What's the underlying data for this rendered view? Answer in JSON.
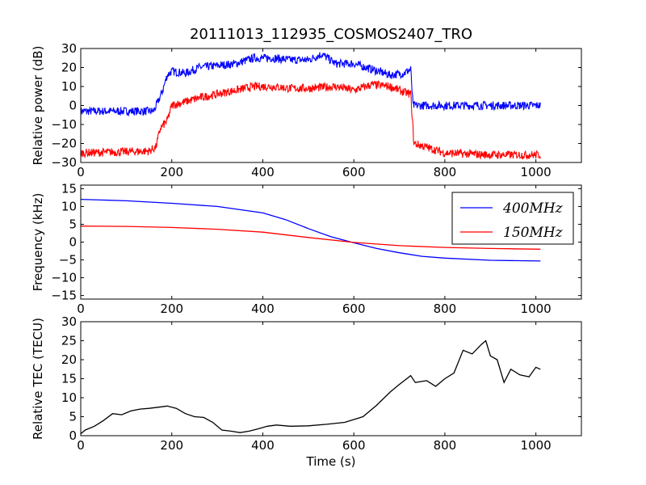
{
  "chart_data": [
    {
      "type": "line",
      "title": "20111013_112935_COSMOS2407_TRO",
      "xlabel": "",
      "ylabel": "Relative power (dB)",
      "xlim": [
        0,
        1100
      ],
      "ylim": [
        -30,
        30
      ],
      "xticks": [
        "0",
        "200",
        "400",
        "600",
        "800",
        "1000"
      ],
      "yticks": [
        "−30",
        "−20",
        "−10",
        "0",
        "10",
        "20",
        "30"
      ],
      "noise": 2.2,
      "series": [
        {
          "color": "#0000ff",
          "x": [
            0,
            160,
            170,
            180,
            190,
            200,
            230,
            260,
            300,
            340,
            380,
            420,
            460,
            500,
            530,
            560,
            600,
            640,
            680,
            710,
            725,
            730,
            760,
            800,
            900,
            1010
          ],
          "y": [
            -3,
            -3,
            2,
            8,
            16,
            18,
            17,
            20,
            21,
            22,
            25,
            25,
            24,
            24,
            27,
            22,
            22,
            19,
            16,
            17,
            19,
            0,
            0,
            0,
            0,
            0
          ]
        },
        {
          "color": "#ff0000",
          "x": [
            0,
            150,
            165,
            175,
            190,
            200,
            230,
            260,
            300,
            340,
            380,
            420,
            460,
            500,
            560,
            600,
            640,
            680,
            710,
            725,
            732,
            760,
            800,
            900,
            1010
          ],
          "y": [
            -25,
            -24,
            -22,
            -12,
            -8,
            0,
            2,
            4,
            6,
            8,
            10,
            10,
            9,
            9,
            10,
            8,
            11,
            10,
            7,
            6,
            -20,
            -22,
            -25,
            -26,
            -26
          ]
        }
      ]
    },
    {
      "type": "line",
      "title": "",
      "xlabel": "",
      "ylabel": "Frequency (kHz)",
      "xlim": [
        0,
        1100
      ],
      "ylim": [
        -16,
        16
      ],
      "xticks": [
        "0",
        "200",
        "400",
        "600",
        "800",
        "1000"
      ],
      "yticks": [
        "−15",
        "−10",
        "−5",
        "0",
        "5",
        "10",
        "15"
      ],
      "legend": "top-right",
      "noise": 0,
      "series": [
        {
          "name": "400MHz",
          "color": "#0000ff",
          "x": [
            0,
            100,
            200,
            300,
            400,
            450,
            500,
            550,
            600,
            650,
            700,
            750,
            800,
            900,
            1010
          ],
          "y": [
            12,
            11.6,
            10.9,
            10.0,
            8.2,
            6.3,
            3.8,
            1.5,
            -0.2,
            -1.8,
            -3.0,
            -4.0,
            -4.5,
            -5.1,
            -5.3
          ]
        },
        {
          "name": "150MHz",
          "color": "#ff0000",
          "x": [
            0,
            100,
            200,
            300,
            400,
            500,
            600,
            700,
            800,
            900,
            1010
          ],
          "y": [
            4.5,
            4.4,
            4.1,
            3.6,
            2.8,
            1.3,
            -0.1,
            -1.0,
            -1.5,
            -1.8,
            -2.0
          ]
        }
      ]
    },
    {
      "type": "line",
      "title": "",
      "xlabel": "Time (s)",
      "ylabel": "Relative TEC (TECU)",
      "xlim": [
        0,
        1100
      ],
      "ylim": [
        0,
        30
      ],
      "xticks": [
        "0",
        "200",
        "400",
        "600",
        "800",
        "1000"
      ],
      "yticks": [
        "0",
        "5",
        "10",
        "15",
        "20",
        "25",
        "30"
      ],
      "noise": 0,
      "series": [
        {
          "color": "#000000",
          "x": [
            0,
            10,
            30,
            50,
            70,
            90,
            110,
            130,
            150,
            170,
            190,
            210,
            230,
            250,
            270,
            290,
            310,
            330,
            350,
            370,
            390,
            410,
            430,
            460,
            500,
            540,
            580,
            620,
            650,
            680,
            700,
            725,
            735,
            760,
            780,
            800,
            820,
            840,
            860,
            880,
            890,
            900,
            915,
            930,
            945,
            965,
            985,
            1000,
            1010
          ],
          "y": [
            0.5,
            1.5,
            2.5,
            4,
            5.8,
            5.5,
            6.5,
            7,
            7.2,
            7.5,
            7.8,
            7.2,
            5.8,
            5,
            4.8,
            3.5,
            1.5,
            1.2,
            0.8,
            1.2,
            1.8,
            2.5,
            2.8,
            2.5,
            2.6,
            3,
            3.5,
            5,
            8,
            11.5,
            13.5,
            15.8,
            14,
            14.5,
            13,
            15,
            16.5,
            22.5,
            21.5,
            24,
            25,
            21,
            20,
            14,
            17.5,
            16,
            15.5,
            18,
            17.5
          ]
        }
      ]
    }
  ]
}
